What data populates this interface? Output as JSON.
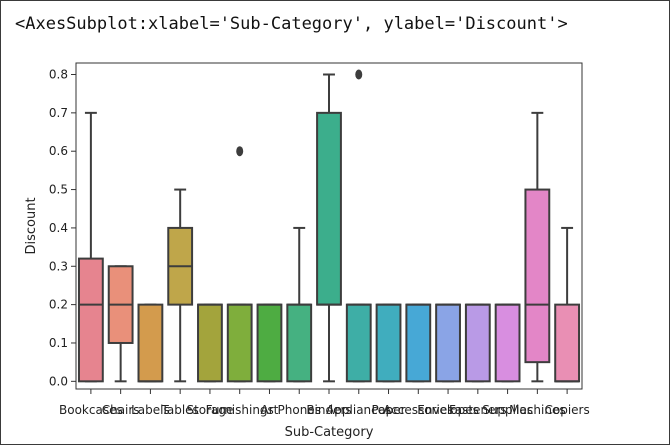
{
  "output": {
    "repr_text": "<AxesSubplot:xlabel='Sub-Category', ylabel='Discount'>"
  },
  "chart_data": {
    "type": "box",
    "xlabel": "Sub-Category",
    "ylabel": "Discount",
    "ylim": [
      -0.02,
      0.83
    ],
    "yticks": [
      "0.0",
      "0.1",
      "0.2",
      "0.3",
      "0.4",
      "0.5",
      "0.6",
      "0.7",
      "0.8"
    ],
    "grid": false,
    "categories": [
      {
        "name": "Bookcases",
        "color": "#e6848f",
        "whislo": 0.0,
        "q1": 0.0,
        "med": 0.2,
        "q3": 0.32,
        "whishi": 0.7,
        "fliers": []
      },
      {
        "name": "Chairs",
        "color": "#e9907a",
        "whislo": 0.0,
        "q1": 0.1,
        "med": 0.2,
        "q3": 0.3,
        "whishi": 0.3,
        "fliers": []
      },
      {
        "name": "Labels",
        "color": "#d39b4d",
        "whislo": 0.0,
        "q1": 0.0,
        "med": 0.0,
        "q3": 0.2,
        "whishi": 0.2,
        "fliers": []
      },
      {
        "name": "Tables",
        "color": "#bfa64a",
        "whislo": 0.0,
        "q1": 0.2,
        "med": 0.3,
        "q3": 0.4,
        "whishi": 0.5,
        "fliers": []
      },
      {
        "name": "Storage",
        "color": "#a3a43c",
        "whislo": 0.0,
        "q1": 0.0,
        "med": 0.2,
        "q3": 0.2,
        "whishi": 0.2,
        "fliers": []
      },
      {
        "name": "Furnishings",
        "color": "#7fae3c",
        "whislo": 0.0,
        "q1": 0.0,
        "med": 0.2,
        "q3": 0.2,
        "whishi": 0.2,
        "fliers": [
          0.6
        ]
      },
      {
        "name": "Art",
        "color": "#4eac42",
        "whislo": 0.0,
        "q1": 0.0,
        "med": 0.2,
        "q3": 0.2,
        "whishi": 0.2,
        "fliers": []
      },
      {
        "name": "Phones",
        "color": "#45b181",
        "whislo": 0.0,
        "q1": 0.0,
        "med": 0.2,
        "q3": 0.2,
        "whishi": 0.4,
        "fliers": []
      },
      {
        "name": "Binders",
        "color": "#3cae8c",
        "whislo": 0.0,
        "q1": 0.2,
        "med": 0.2,
        "q3": 0.7,
        "whishi": 0.8,
        "fliers": []
      },
      {
        "name": "Appliances",
        "color": "#3eaea6",
        "whislo": 0.0,
        "q1": 0.0,
        "med": 0.2,
        "q3": 0.2,
        "whishi": 0.2,
        "fliers": [
          0.8
        ]
      },
      {
        "name": "Paper",
        "color": "#40adbe",
        "whislo": 0.0,
        "q1": 0.0,
        "med": 0.2,
        "q3": 0.2,
        "whishi": 0.2,
        "fliers": []
      },
      {
        "name": "Accessories",
        "color": "#47a8d6",
        "whislo": 0.0,
        "q1": 0.0,
        "med": 0.2,
        "q3": 0.2,
        "whishi": 0.2,
        "fliers": []
      },
      {
        "name": "Envelopes",
        "color": "#8aa4e6",
        "whislo": 0.0,
        "q1": 0.0,
        "med": 0.2,
        "q3": 0.2,
        "whishi": 0.2,
        "fliers": []
      },
      {
        "name": "Fasteners",
        "color": "#b99ae6",
        "whislo": 0.0,
        "q1": 0.0,
        "med": 0.2,
        "q3": 0.2,
        "whishi": 0.2,
        "fliers": []
      },
      {
        "name": "Supplies",
        "color": "#d88ee0",
        "whislo": 0.0,
        "q1": 0.0,
        "med": 0.2,
        "q3": 0.2,
        "whishi": 0.2,
        "fliers": []
      },
      {
        "name": "Machines",
        "color": "#e386c7",
        "whislo": 0.0,
        "q1": 0.05,
        "med": 0.2,
        "q3": 0.5,
        "whishi": 0.7,
        "fliers": []
      },
      {
        "name": "Copiers",
        "color": "#e98fb4",
        "whislo": 0.0,
        "q1": 0.0,
        "med": 0.0,
        "q3": 0.2,
        "whishi": 0.4,
        "fliers": []
      }
    ]
  }
}
